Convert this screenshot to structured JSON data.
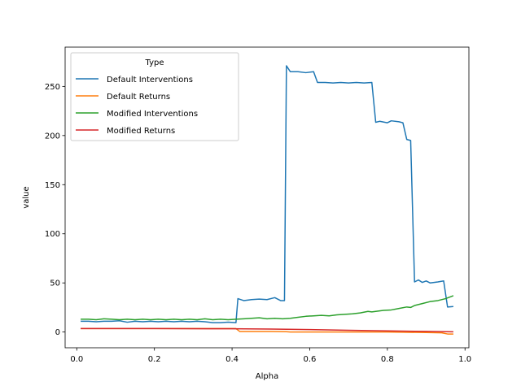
{
  "chart_data": {
    "type": "line",
    "xlabel": "Alpha",
    "ylabel": "value",
    "xlim": [
      -0.03,
      1.01
    ],
    "ylim": [
      -16,
      290
    ],
    "x_ticks": [
      0.0,
      0.2,
      0.4,
      0.6,
      0.8,
      1.0
    ],
    "x_tick_labels": [
      "0.0",
      "0.2",
      "0.4",
      "0.6",
      "0.8",
      "1.0"
    ],
    "y_ticks": [
      0,
      50,
      100,
      150,
      200,
      250
    ],
    "y_tick_labels": [
      "0",
      "50",
      "100",
      "150",
      "200",
      "250"
    ],
    "grid": false,
    "legend": {
      "title": "Type",
      "placement": "upper-left"
    },
    "series": [
      {
        "name": "Default Interventions",
        "color": "#1f77b4",
        "points": [
          [
            0.01,
            11
          ],
          [
            0.03,
            11
          ],
          [
            0.05,
            10.5
          ],
          [
            0.07,
            11
          ],
          [
            0.09,
            11
          ],
          [
            0.11,
            11.5
          ],
          [
            0.13,
            10
          ],
          [
            0.15,
            11
          ],
          [
            0.17,
            10.5
          ],
          [
            0.19,
            11
          ],
          [
            0.21,
            10.5
          ],
          [
            0.23,
            11
          ],
          [
            0.25,
            10.5
          ],
          [
            0.27,
            11
          ],
          [
            0.29,
            10.5
          ],
          [
            0.31,
            11
          ],
          [
            0.33,
            10.5
          ],
          [
            0.35,
            9.5
          ],
          [
            0.37,
            9.5
          ],
          [
            0.39,
            10
          ],
          [
            0.41,
            9.5
          ],
          [
            0.415,
            34
          ],
          [
            0.43,
            32
          ],
          [
            0.45,
            33
          ],
          [
            0.47,
            33.5
          ],
          [
            0.49,
            33
          ],
          [
            0.51,
            35
          ],
          [
            0.525,
            32
          ],
          [
            0.535,
            32
          ],
          [
            0.54,
            271
          ],
          [
            0.55,
            265
          ],
          [
            0.57,
            265
          ],
          [
            0.59,
            264
          ],
          [
            0.61,
            265
          ],
          [
            0.62,
            254
          ],
          [
            0.64,
            254
          ],
          [
            0.66,
            253.5
          ],
          [
            0.68,
            254
          ],
          [
            0.7,
            253.5
          ],
          [
            0.72,
            254
          ],
          [
            0.74,
            253.5
          ],
          [
            0.76,
            254
          ],
          [
            0.77,
            213.5
          ],
          [
            0.78,
            214.5
          ],
          [
            0.8,
            213
          ],
          [
            0.81,
            215
          ],
          [
            0.83,
            214
          ],
          [
            0.84,
            213
          ],
          [
            0.85,
            196
          ],
          [
            0.86,
            195
          ],
          [
            0.87,
            51
          ],
          [
            0.88,
            53
          ],
          [
            0.89,
            50.5
          ],
          [
            0.9,
            52
          ],
          [
            0.91,
            50
          ],
          [
            0.93,
            51
          ],
          [
            0.945,
            52
          ],
          [
            0.955,
            25.5
          ],
          [
            0.97,
            26
          ]
        ]
      },
      {
        "name": "Default Returns",
        "color": "#ff7f0e",
        "points": [
          [
            0.01,
            3.5
          ],
          [
            0.1,
            3.5
          ],
          [
            0.2,
            3.5
          ],
          [
            0.3,
            3.5
          ],
          [
            0.41,
            3.5
          ],
          [
            0.42,
            0.5
          ],
          [
            0.5,
            0.5
          ],
          [
            0.54,
            0.3
          ],
          [
            0.55,
            0
          ],
          [
            0.7,
            0
          ],
          [
            0.8,
            0
          ],
          [
            0.9,
            -0.5
          ],
          [
            0.94,
            -0.8
          ],
          [
            0.955,
            -2
          ],
          [
            0.97,
            -2
          ]
        ]
      },
      {
        "name": "Modified Interventions",
        "color": "#2ca02c",
        "points": [
          [
            0.01,
            13
          ],
          [
            0.03,
            13
          ],
          [
            0.05,
            12.5
          ],
          [
            0.07,
            13.5
          ],
          [
            0.09,
            13
          ],
          [
            0.11,
            12.5
          ],
          [
            0.13,
            13
          ],
          [
            0.15,
            12.5
          ],
          [
            0.17,
            13
          ],
          [
            0.19,
            12.5
          ],
          [
            0.21,
            13
          ],
          [
            0.23,
            12.5
          ],
          [
            0.25,
            13
          ],
          [
            0.27,
            12.5
          ],
          [
            0.29,
            13
          ],
          [
            0.31,
            12.5
          ],
          [
            0.33,
            13.5
          ],
          [
            0.35,
            12.5
          ],
          [
            0.37,
            13
          ],
          [
            0.39,
            12.5
          ],
          [
            0.41,
            13
          ],
          [
            0.43,
            13.5
          ],
          [
            0.45,
            14
          ],
          [
            0.47,
            14.5
          ],
          [
            0.49,
            13.5
          ],
          [
            0.51,
            14
          ],
          [
            0.53,
            13.5
          ],
          [
            0.55,
            14
          ],
          [
            0.57,
            15
          ],
          [
            0.59,
            16
          ],
          [
            0.61,
            16.5
          ],
          [
            0.63,
            17
          ],
          [
            0.65,
            16.5
          ],
          [
            0.67,
            17.5
          ],
          [
            0.69,
            18
          ],
          [
            0.71,
            18.5
          ],
          [
            0.73,
            19.5
          ],
          [
            0.75,
            21
          ],
          [
            0.76,
            20.5
          ],
          [
            0.77,
            21
          ],
          [
            0.79,
            22
          ],
          [
            0.81,
            22.5
          ],
          [
            0.83,
            24
          ],
          [
            0.85,
            25.5
          ],
          [
            0.86,
            25
          ],
          [
            0.87,
            27
          ],
          [
            0.89,
            29
          ],
          [
            0.91,
            31
          ],
          [
            0.93,
            32
          ],
          [
            0.95,
            34
          ],
          [
            0.97,
            37
          ]
        ]
      },
      {
        "name": "Modified Returns",
        "color": "#d62728",
        "points": [
          [
            0.01,
            3.5
          ],
          [
            0.2,
            3.5
          ],
          [
            0.4,
            3.3
          ],
          [
            0.5,
            3
          ],
          [
            0.6,
            2.5
          ],
          [
            0.7,
            1.8
          ],
          [
            0.8,
            1.2
          ],
          [
            0.9,
            0.6
          ],
          [
            0.97,
            0.2
          ]
        ]
      }
    ]
  }
}
